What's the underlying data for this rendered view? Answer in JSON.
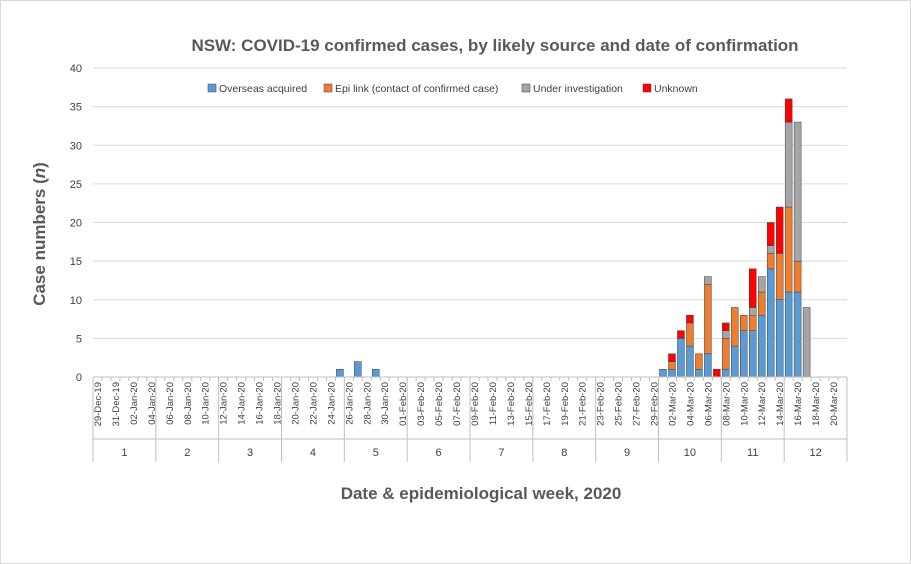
{
  "chart_data": {
    "type": "bar",
    "stacked": true,
    "title": "NSW: COVID-19 confirmed cases, by likely source and date of confirmation",
    "xlabel": "Date & epidemiological week, 2020",
    "ylabel_main": "Case numbers (",
    "ylabel_italic": "n",
    "ylabel_end": ")",
    "ylim": [
      0,
      40
    ],
    "yticks": [
      0,
      5,
      10,
      15,
      20,
      25,
      30,
      35,
      40
    ],
    "grid": true,
    "legend_position": "top",
    "start_date": "2019-12-29",
    "num_days": 84,
    "date_labels": [
      "29-Dec-19",
      "31-Dec-19",
      "02-Jan-20",
      "04-Jan-20",
      "06-Jan-20",
      "08-Jan-20",
      "10-Jan-20",
      "12-Jan-20",
      "14-Jan-20",
      "16-Jan-20",
      "18-Jan-20",
      "20-Jan-20",
      "22-Jan-20",
      "24-Jan-20",
      "26-Jan-20",
      "28-Jan-20",
      "30-Jan-20",
      "01-Feb-20",
      "03-Feb-20",
      "05-Feb-20",
      "07-Feb-20",
      "09-Feb-20",
      "11-Feb-20",
      "13-Feb-20",
      "15-Feb-20",
      "17-Feb-20",
      "19-Feb-20",
      "21-Feb-20",
      "23-Feb-20",
      "25-Feb-20",
      "27-Feb-20",
      "29-Feb-20",
      "02-Mar-20",
      "04-Mar-20",
      "06-Mar-20",
      "08-Mar-20",
      "10-Mar-20",
      "12-Mar-20",
      "14-Mar-20",
      "16-Mar-20",
      "18-Mar-20",
      "20-Mar-20"
    ],
    "weeks": [
      "1",
      "2",
      "3",
      "4",
      "5",
      "6",
      "7",
      "8",
      "9",
      "10",
      "11",
      "12"
    ],
    "series": [
      {
        "name": "Overseas acquired",
        "color": "#5b9bd5",
        "points": [
          [
            "2020-01-25",
            1
          ],
          [
            "2020-01-27",
            2
          ],
          [
            "2020-01-29",
            1
          ],
          [
            "2020-03-01",
            1
          ],
          [
            "2020-03-02",
            1
          ],
          [
            "2020-03-03",
            5
          ],
          [
            "2020-03-04",
            4
          ],
          [
            "2020-03-05",
            1
          ],
          [
            "2020-03-06",
            3
          ],
          [
            "2020-03-08",
            1
          ],
          [
            "2020-03-09",
            4
          ],
          [
            "2020-03-10",
            6
          ],
          [
            "2020-03-11",
            6
          ],
          [
            "2020-03-12",
            8
          ],
          [
            "2020-03-13",
            14
          ],
          [
            "2020-03-14",
            10
          ],
          [
            "2020-03-15",
            11
          ],
          [
            "2020-03-16",
            11
          ]
        ]
      },
      {
        "name": "Epi link (contact of confirmed case)",
        "color": "#ed7d31",
        "points": [
          [
            "2020-03-02",
            1
          ],
          [
            "2020-03-04",
            3
          ],
          [
            "2020-03-05",
            2
          ],
          [
            "2020-03-06",
            9
          ],
          [
            "2020-03-08",
            4
          ],
          [
            "2020-03-09",
            5
          ],
          [
            "2020-03-10",
            2
          ],
          [
            "2020-03-11",
            2
          ],
          [
            "2020-03-12",
            3
          ],
          [
            "2020-03-13",
            2
          ],
          [
            "2020-03-14",
            6
          ],
          [
            "2020-03-15",
            11
          ],
          [
            "2020-03-16",
            4
          ]
        ]
      },
      {
        "name": "Under investigation",
        "color": "#a5a5a5",
        "points": [
          [
            "2020-03-06",
            1
          ],
          [
            "2020-03-08",
            1
          ],
          [
            "2020-03-11",
            1
          ],
          [
            "2020-03-12",
            2
          ],
          [
            "2020-03-13",
            1
          ],
          [
            "2020-03-15",
            11
          ],
          [
            "2020-03-16",
            18
          ],
          [
            "2020-03-17",
            9
          ]
        ]
      },
      {
        "name": "Unknown",
        "color": "#ff0000",
        "points": [
          [
            "2020-03-02",
            1
          ],
          [
            "2020-03-03",
            1
          ],
          [
            "2020-03-04",
            1
          ],
          [
            "2020-03-07",
            1
          ],
          [
            "2020-03-08",
            1
          ],
          [
            "2020-03-11",
            5
          ],
          [
            "2020-03-12",
            0
          ],
          [
            "2020-03-13",
            3
          ],
          [
            "2020-03-14",
            6
          ],
          [
            "2020-03-15",
            3
          ]
        ]
      }
    ]
  }
}
